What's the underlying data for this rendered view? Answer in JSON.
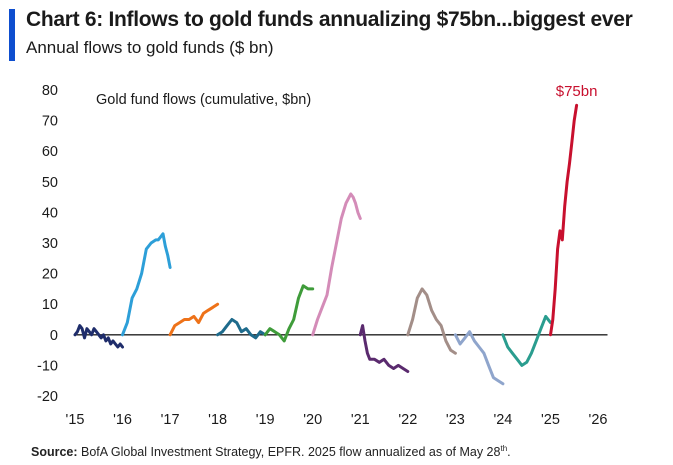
{
  "header": {
    "title": "Chart 6: Inflows to gold funds annualizing $75bn...biggest ever",
    "subtitle": "Annual flows to gold funds ($ bn)",
    "accent_color": "#0e4ecf"
  },
  "footer": {
    "source_label": "Source:",
    "source_text": " BofA Global Investment Strategy, EPFR. 2025 flow annualized as of May 28",
    "source_sup": "th",
    "source_end": "."
  },
  "chart_data": {
    "type": "line",
    "title": "Chart 6: Inflows to gold funds annualizing $75bn...biggest ever",
    "subtitle": "Annual flows to gold funds ($ bn)",
    "inner_label": "Gold fund flows (cumulative, $bn)",
    "xlabel": "",
    "ylabel": "",
    "x_ticks": [
      "'15",
      "'16",
      "'17",
      "'18",
      "'19",
      "'20",
      "'21",
      "'22",
      "'23",
      "'24",
      "'25",
      "'26"
    ],
    "x_tick_values": [
      2015,
      2016,
      2017,
      2018,
      2019,
      2020,
      2021,
      2022,
      2023,
      2024,
      2025,
      2026
    ],
    "y_ticks": [
      "80",
      "70",
      "60",
      "50",
      "40",
      "30",
      "20",
      "10",
      "0",
      "-10",
      "-20"
    ],
    "y_tick_values": [
      80,
      70,
      60,
      50,
      40,
      30,
      20,
      10,
      0,
      -10,
      -20
    ],
    "xlim": [
      2015,
      2026.2
    ],
    "ylim": [
      -20,
      80
    ],
    "grid": false,
    "zero_line": true,
    "annotation": {
      "text": "$75bn",
      "x": 2025.55,
      "y": 78,
      "color": "#c8102e"
    },
    "series": [
      {
        "name": "2015",
        "color": "#1f2d6b",
        "x": [
          2015.0,
          2015.05,
          2015.1,
          2015.15,
          2015.2,
          2015.25,
          2015.3,
          2015.35,
          2015.4,
          2015.45,
          2015.5,
          2015.55,
          2015.6,
          2015.65,
          2015.7,
          2015.75,
          2015.8,
          2015.85,
          2015.9,
          2015.95,
          2016.0
        ],
        "y": [
          0,
          1,
          3,
          2,
          -1,
          2,
          1,
          0,
          2,
          1,
          0,
          -1,
          0,
          -2,
          -1,
          -3,
          -2,
          -3,
          -4,
          -3,
          -4
        ]
      },
      {
        "name": "2016",
        "color": "#2d9fd8",
        "x": [
          2016.0,
          2016.1,
          2016.2,
          2016.3,
          2016.4,
          2016.5,
          2016.6,
          2016.7,
          2016.75,
          2016.8,
          2016.85,
          2016.9,
          2016.95,
          2017.0
        ],
        "y": [
          0,
          4,
          12,
          15,
          20,
          28,
          30,
          31,
          31,
          32,
          33,
          29,
          26,
          22
        ]
      },
      {
        "name": "2017",
        "color": "#ee7219",
        "x": [
          2017.0,
          2017.1,
          2017.2,
          2017.3,
          2017.4,
          2017.5,
          2017.6,
          2017.7,
          2017.8,
          2017.9,
          2018.0
        ],
        "y": [
          0,
          3,
          4,
          5,
          5,
          6,
          4,
          7,
          8,
          9,
          10
        ]
      },
      {
        "name": "2018",
        "color": "#1e6b8c",
        "x": [
          2018.0,
          2018.1,
          2018.2,
          2018.3,
          2018.4,
          2018.5,
          2018.6,
          2018.7,
          2018.8,
          2018.9,
          2019.0
        ],
        "y": [
          0,
          1,
          3,
          5,
          4,
          1,
          2,
          0,
          -1,
          1,
          0
        ]
      },
      {
        "name": "2019",
        "color": "#3f9c3a",
        "x": [
          2019.0,
          2019.1,
          2019.2,
          2019.3,
          2019.4,
          2019.5,
          2019.6,
          2019.7,
          2019.8,
          2019.9,
          2020.0
        ],
        "y": [
          0,
          2,
          1,
          0,
          -2,
          2,
          5,
          12,
          16,
          15,
          15
        ]
      },
      {
        "name": "2020",
        "color": "#d48cb8",
        "x": [
          2020.0,
          2020.1,
          2020.2,
          2020.3,
          2020.4,
          2020.5,
          2020.6,
          2020.7,
          2020.8,
          2020.85,
          2020.9,
          2020.95,
          2021.0
        ],
        "y": [
          0,
          5,
          9,
          13,
          22,
          30,
          38,
          43,
          46,
          45,
          43,
          40,
          38
        ]
      },
      {
        "name": "2021",
        "color": "#5a2a6e",
        "x": [
          2021.0,
          2021.05,
          2021.1,
          2021.15,
          2021.2,
          2021.3,
          2021.4,
          2021.5,
          2021.6,
          2021.7,
          2021.8,
          2021.9,
          2022.0
        ],
        "y": [
          0,
          3,
          -2,
          -6,
          -8,
          -8,
          -9,
          -8,
          -10,
          -11,
          -10,
          -11,
          -12
        ]
      },
      {
        "name": "2022",
        "color": "#a38e88",
        "x": [
          2022.0,
          2022.1,
          2022.2,
          2022.3,
          2022.4,
          2022.5,
          2022.6,
          2022.7,
          2022.8,
          2022.9,
          2023.0
        ],
        "y": [
          0,
          5,
          12,
          15,
          13,
          8,
          5,
          3,
          -2,
          -5,
          -6
        ]
      },
      {
        "name": "2023",
        "color": "#8fa5cc",
        "x": [
          2023.0,
          2023.1,
          2023.2,
          2023.3,
          2023.4,
          2023.5,
          2023.6,
          2023.7,
          2023.8,
          2023.9,
          2024.0
        ],
        "y": [
          0,
          -3,
          -1,
          1,
          -2,
          -4,
          -6,
          -10,
          -14,
          -15,
          -16
        ]
      },
      {
        "name": "2024",
        "color": "#2a9d8f",
        "x": [
          2024.0,
          2024.1,
          2024.2,
          2024.3,
          2024.4,
          2024.5,
          2024.6,
          2024.7,
          2024.8,
          2024.9,
          2025.0
        ],
        "y": [
          0,
          -4,
          -6,
          -8,
          -10,
          -9,
          -6,
          -2,
          2,
          6,
          4
        ]
      },
      {
        "name": "2025",
        "color": "#c8102e",
        "x": [
          2025.0,
          2025.05,
          2025.1,
          2025.15,
          2025.2,
          2025.25,
          2025.3,
          2025.35,
          2025.4,
          2025.45,
          2025.5,
          2025.55
        ],
        "y": [
          0,
          5,
          15,
          28,
          34,
          31,
          42,
          50,
          56,
          63,
          70,
          75
        ]
      }
    ]
  }
}
